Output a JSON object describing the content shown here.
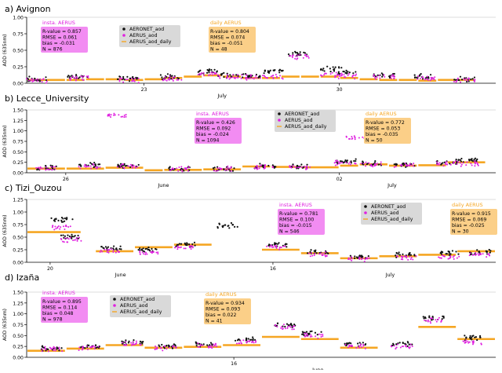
{
  "figure": {
    "y_axis_label": "AOD (635nm)",
    "legend_labels": [
      "AERONET_aod",
      "AERUS_aod",
      "AERUS_aod_daily"
    ]
  },
  "colors": {
    "aeronet": "#111111",
    "aerus": "#e020e0",
    "daily": "#f5a623",
    "insta_box": "#f28cf2",
    "insta_title": "#e020e0",
    "daily_box": "#fbcf88",
    "daily_title": "#f5a623",
    "legend_box": "#d9d9d9",
    "axis": "#000000"
  },
  "chart_data": [
    {
      "type": "scatter",
      "panel_label": "a) Avignon",
      "ylabel": "AOD (635nm)",
      "ylim": [
        0,
        1.0
      ],
      "yticks": [
        "0.00",
        "0.25",
        "0.50",
        "0.75",
        "1.00"
      ],
      "ytick_values": [
        0,
        0.25,
        0.5,
        0.75,
        1.0
      ],
      "xlim": [
        0,
        24
      ],
      "xticks": [
        {
          "x": 6,
          "label": "23"
        },
        {
          "x": 16,
          "label": "30"
        }
      ],
      "month_labels": [
        {
          "x": 10,
          "label": "July"
        }
      ],
      "stats_insta": {
        "title": "insta. AERUS",
        "lines": [
          "R-value = 0.857",
          "RMSE = 0.061",
          "bias = -0.031",
          "N = 876"
        ]
      },
      "stats_daily": {
        "title": "daily AERUS",
        "lines": [
          "R-value = 0.804",
          "RMSE = 0.074",
          "bias = -0.051",
          "N = 48"
        ]
      },
      "daily_levels": [
        [
          0,
          1,
          0.05
        ],
        [
          1,
          2,
          0.05
        ],
        [
          2,
          3,
          0.05
        ],
        [
          3,
          4,
          0.06
        ],
        [
          4,
          5,
          0.06
        ],
        [
          5,
          6,
          0.05
        ],
        [
          6,
          7,
          0.06
        ],
        [
          7,
          8,
          0.08
        ],
        [
          8,
          9,
          0.1
        ],
        [
          9,
          10,
          0.12
        ],
        [
          10,
          11,
          0.1
        ],
        [
          11,
          12,
          0.08
        ],
        [
          12,
          13,
          0.08
        ],
        [
          13,
          14,
          0.1
        ],
        [
          14,
          15,
          0.1
        ],
        [
          15,
          16,
          0.1
        ],
        [
          16,
          17,
          0.08
        ],
        [
          17,
          18,
          0.06
        ],
        [
          18,
          19,
          0.05
        ],
        [
          19,
          20,
          0.05
        ],
        [
          20,
          21,
          0.04
        ],
        [
          21,
          22,
          0.05
        ],
        [
          22,
          23,
          0.05
        ]
      ],
      "aeronet_clusters": [
        [
          0.5,
          0.06
        ],
        [
          2.6,
          0.1
        ],
        [
          5.2,
          0.07
        ],
        [
          7.4,
          0.1
        ],
        [
          9.3,
          0.17
        ],
        [
          10.3,
          0.12
        ],
        [
          11.5,
          0.12
        ],
        [
          12.6,
          0.18
        ],
        [
          13.9,
          0.45
        ],
        [
          15.6,
          0.22
        ],
        [
          16.4,
          0.16
        ],
        [
          18.3,
          0.12
        ],
        [
          20.4,
          0.1
        ],
        [
          22.4,
          0.06
        ]
      ],
      "aerus_clusters": [
        [
          0.5,
          0.05
        ],
        [
          2.7,
          0.08
        ],
        [
          5.2,
          0.05
        ],
        [
          7.4,
          0.07
        ],
        [
          9.3,
          0.14
        ],
        [
          10.3,
          0.1
        ],
        [
          11.5,
          0.09
        ],
        [
          12.6,
          0.1
        ],
        [
          13.9,
          0.4
        ],
        [
          15.6,
          0.13
        ],
        [
          16.4,
          0.11
        ],
        [
          18.3,
          0.1
        ],
        [
          20.4,
          0.08
        ],
        [
          22.4,
          0.05
        ]
      ]
    },
    {
      "type": "scatter",
      "panel_label": "b) Lecce_University",
      "ylabel": "AOD (635nm)",
      "ylim": [
        0,
        1.5
      ],
      "yticks": [
        "0.00",
        "0.25",
        "0.50",
        "0.75",
        "1.00",
        "1.25",
        "1.50"
      ],
      "ytick_values": [
        0,
        0.25,
        0.5,
        0.75,
        1.0,
        1.25,
        1.5
      ],
      "xlim": [
        0,
        24
      ],
      "xticks": [
        {
          "x": 2,
          "label": "26"
        },
        {
          "x": 16,
          "label": "02"
        }
      ],
      "month_labels": [
        {
          "x": 7,
          "label": "June"
        },
        {
          "x": 18.7,
          "label": "July"
        }
      ],
      "stats_insta": {
        "title": "insta. AERUS",
        "lines": [
          "R-value = 0.426",
          "RMSE = 0.092",
          "bias = -0.024",
          "N = 1094"
        ]
      },
      "stats_daily": {
        "title": "daily AERUS",
        "lines": [
          "R-value = 0.772",
          "RMSE = 0.053",
          "bias = -0.035",
          "N = 50"
        ]
      },
      "daily_levels": [
        [
          0,
          2,
          0.1
        ],
        [
          2,
          4,
          0.1
        ],
        [
          4,
          6,
          0.12
        ],
        [
          6,
          7,
          0.06
        ],
        [
          7,
          9,
          0.07
        ],
        [
          9,
          11,
          0.08
        ],
        [
          11,
          12.5,
          0.15
        ],
        [
          12.5,
          14,
          0.14
        ],
        [
          14,
          16,
          0.13
        ],
        [
          16,
          17,
          0.17
        ],
        [
          17,
          18.5,
          0.2
        ],
        [
          18.5,
          20,
          0.17
        ],
        [
          20,
          21.5,
          0.18
        ],
        [
          21.5,
          23.5,
          0.25
        ]
      ],
      "aeronet_clusters": [
        [
          1,
          0.13
        ],
        [
          3.2,
          0.18
        ],
        [
          5.2,
          0.17
        ],
        [
          7.8,
          0.1
        ],
        [
          10.1,
          0.1
        ],
        [
          12.2,
          0.16
        ],
        [
          14,
          0.15
        ],
        [
          16.3,
          0.28
        ],
        [
          17.6,
          0.22
        ],
        [
          19.3,
          0.2
        ],
        [
          21.5,
          0.26
        ],
        [
          22.6,
          0.3
        ]
      ],
      "aerus_clusters": [
        [
          1,
          0.11
        ],
        [
          3.2,
          0.15
        ],
        [
          4.6,
          1.36
        ],
        [
          5.2,
          0.15
        ],
        [
          7.8,
          0.09
        ],
        [
          10.1,
          0.1
        ],
        [
          12.2,
          0.14
        ],
        [
          14,
          0.13
        ],
        [
          16.3,
          0.24
        ],
        [
          16.9,
          0.85
        ],
        [
          17.6,
          0.2
        ],
        [
          19.3,
          0.18
        ],
        [
          21.5,
          0.22
        ],
        [
          22.6,
          0.22
        ]
      ]
    },
    {
      "type": "scatter",
      "panel_label": "c) Tizi_Ouzou",
      "ylabel": "AOD (635nm)",
      "ylim": [
        0,
        1.25
      ],
      "yticks": [
        "0.00",
        "0.25",
        "0.50",
        "0.75",
        "1.00",
        "1.25"
      ],
      "ytick_values": [
        0,
        0.25,
        0.5,
        0.75,
        1.0,
        1.25
      ],
      "xlim": [
        0,
        24
      ],
      "xticks": [
        {
          "x": 1.2,
          "label": "20"
        },
        {
          "x": 12.6,
          "label": "16"
        }
      ],
      "month_labels": [
        {
          "x": 4.8,
          "label": "June"
        },
        {
          "x": 18.6,
          "label": "July"
        }
      ],
      "stats_insta": {
        "title": "insta. AERUS",
        "lines": [
          "R-value = 0.781",
          "RMSE = 0.100",
          "bias = -0.015",
          "N = 546"
        ]
      },
      "stats_daily": {
        "title": "daily AERUS",
        "lines": [
          "R-value = 0.915",
          "RMSE = 0.069",
          "bias = -0.025",
          "N = 30"
        ]
      },
      "daily_levels": [
        [
          0,
          2.8,
          0.6
        ],
        [
          3.5,
          5.5,
          0.22
        ],
        [
          5.5,
          7.5,
          0.3
        ],
        [
          7.5,
          9.5,
          0.35
        ],
        [
          12,
          14,
          0.25
        ],
        [
          14,
          16,
          0.18
        ],
        [
          16,
          18,
          0.08
        ],
        [
          18,
          20,
          0.12
        ],
        [
          20,
          22,
          0.15
        ],
        [
          22,
          24,
          0.22
        ]
      ],
      "aeronet_clusters": [
        [
          1.8,
          0.85
        ],
        [
          2.3,
          0.5
        ],
        [
          4.3,
          0.28
        ],
        [
          6.2,
          0.25
        ],
        [
          8.1,
          0.35
        ],
        [
          10.3,
          0.73
        ],
        [
          12.8,
          0.35
        ],
        [
          14.9,
          0.2
        ],
        [
          17,
          0.1
        ],
        [
          19.4,
          0.15
        ],
        [
          21.6,
          0.18
        ],
        [
          23.2,
          0.2
        ]
      ],
      "aerus_clusters": [
        [
          1.8,
          0.7
        ],
        [
          2.3,
          0.45
        ],
        [
          4.3,
          0.22
        ],
        [
          6.2,
          0.2
        ],
        [
          8.1,
          0.3
        ],
        [
          12.8,
          0.3
        ],
        [
          14.9,
          0.15
        ],
        [
          17,
          0.06
        ],
        [
          19.4,
          0.1
        ],
        [
          21.6,
          0.1
        ],
        [
          23.2,
          0.16
        ]
      ]
    },
    {
      "type": "scatter",
      "panel_label": "d) Izaña",
      "ylabel": "AOD (635nm)",
      "ylim": [
        0,
        1.5
      ],
      "yticks": [
        "0.00",
        "0.25",
        "0.50",
        "0.75",
        "1.00",
        "1.25",
        "1.50"
      ],
      "ytick_values": [
        0,
        0.25,
        0.5,
        0.75,
        1.0,
        1.25,
        1.5
      ],
      "xlim": [
        0,
        24
      ],
      "xticks": [
        {
          "x": 10.6,
          "label": "16"
        }
      ],
      "month_labels": [
        {
          "x": 14.9,
          "label": "June"
        }
      ],
      "stats_insta": {
        "title": "insta. AERUS",
        "lines": [
          "R-value = 0.895",
          "RMSE = 0.114",
          "bias = 0.048",
          "N = 978"
        ]
      },
      "stats_daily": {
        "title": "daily AERUS",
        "lines": [
          "R-value = 0.934",
          "RMSE = 0.093",
          "bias = 0.022",
          "N = 41"
        ]
      },
      "daily_levels": [
        [
          0,
          2,
          0.15
        ],
        [
          2,
          4,
          0.2
        ],
        [
          4,
          6,
          0.28
        ],
        [
          6,
          8,
          0.22
        ],
        [
          8,
          10,
          0.24
        ],
        [
          10,
          12,
          0.28
        ],
        [
          12,
          14,
          0.47
        ],
        [
          14,
          16,
          0.42
        ],
        [
          16,
          18,
          0.22
        ],
        [
          20,
          22,
          0.7
        ],
        [
          22,
          24,
          0.42
        ]
      ],
      "aeronet_clusters": [
        [
          1.3,
          0.2
        ],
        [
          3.2,
          0.25
        ],
        [
          5.4,
          0.35
        ],
        [
          7.1,
          0.25
        ],
        [
          9.2,
          0.3
        ],
        [
          11.2,
          0.4
        ],
        [
          13.2,
          0.75
        ],
        [
          14.6,
          0.55
        ],
        [
          16.8,
          0.3
        ],
        [
          19.2,
          0.3
        ],
        [
          20.8,
          0.9
        ],
        [
          22.8,
          0.45
        ]
      ],
      "aerus_clusters": [
        [
          1.3,
          0.18
        ],
        [
          3.2,
          0.22
        ],
        [
          5.4,
          0.32
        ],
        [
          7.1,
          0.22
        ],
        [
          9.2,
          0.27
        ],
        [
          11.2,
          0.35
        ],
        [
          13.2,
          0.7
        ],
        [
          14.6,
          0.5
        ],
        [
          16.8,
          0.25
        ],
        [
          19.2,
          0.25
        ],
        [
          20.8,
          0.85
        ],
        [
          22.8,
          0.35
        ]
      ]
    }
  ]
}
